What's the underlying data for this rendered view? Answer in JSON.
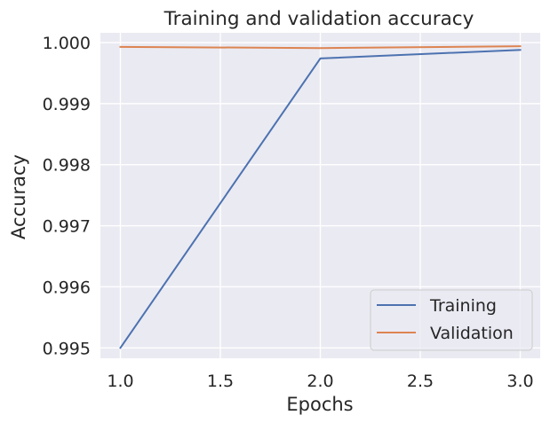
{
  "chart_data": {
    "type": "line",
    "title": "Training and validation accuracy",
    "xlabel": "Epochs",
    "ylabel": "Accuracy",
    "x": [
      1.0,
      2.0,
      3.0
    ],
    "series": [
      {
        "name": "Training",
        "values": [
          0.995,
          0.99974,
          0.99988
        ],
        "color": "#4c72b0"
      },
      {
        "name": "Validation",
        "values": [
          0.99993,
          0.99991,
          0.99994
        ],
        "color": "#dd8452"
      }
    ],
    "xlim": [
      0.9,
      3.1
    ],
    "ylim": [
      0.99483,
      1.00016
    ],
    "xticks": [
      1.0,
      1.5,
      2.0,
      2.5,
      3.0
    ],
    "xtick_labels": [
      "1.0",
      "1.5",
      "2.0",
      "2.5",
      "3.0"
    ],
    "yticks": [
      0.995,
      0.996,
      0.997,
      0.998,
      0.999,
      1.0
    ],
    "ytick_labels": [
      "0.995",
      "0.996",
      "0.997",
      "0.998",
      "0.999",
      "1.000"
    ],
    "grid": true,
    "legend_position": "lower-right",
    "background_color": "#eaeaf2",
    "grid_color": "#ffffff"
  }
}
